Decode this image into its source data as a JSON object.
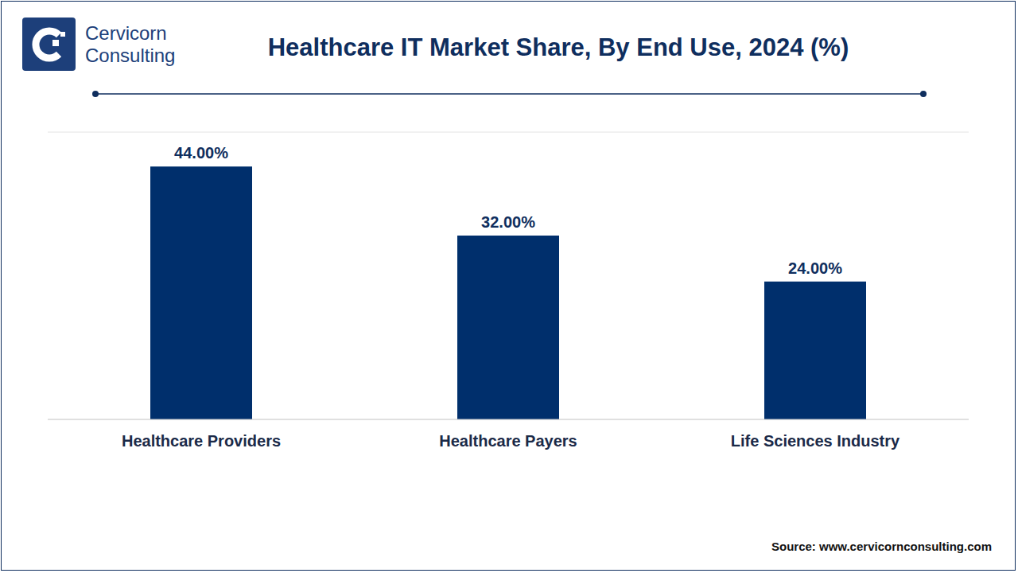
{
  "chart_data": {
    "type": "bar",
    "title": "Healthcare IT Market Share, By End Use, 2024 (%)",
    "logo": [
      "Cervicorn",
      "Consulting"
    ],
    "source": "Source: www.cervicornconsulting.com",
    "categories": [
      "Healthcare Providers",
      "Healthcare Payers",
      "Life Sciences Industry"
    ],
    "values": [
      44,
      32,
      24
    ],
    "value_labels": [
      "44.00%",
      "32.00%",
      "24.00%"
    ],
    "color": "#002f6c",
    "ylim": [
      0,
      50
    ],
    "yticks": [
      0,
      5,
      10,
      15,
      20,
      25,
      30,
      35,
      40,
      45,
      50
    ],
    "grid": true,
    "data_labels": true,
    "tick_labels": "x"
  }
}
